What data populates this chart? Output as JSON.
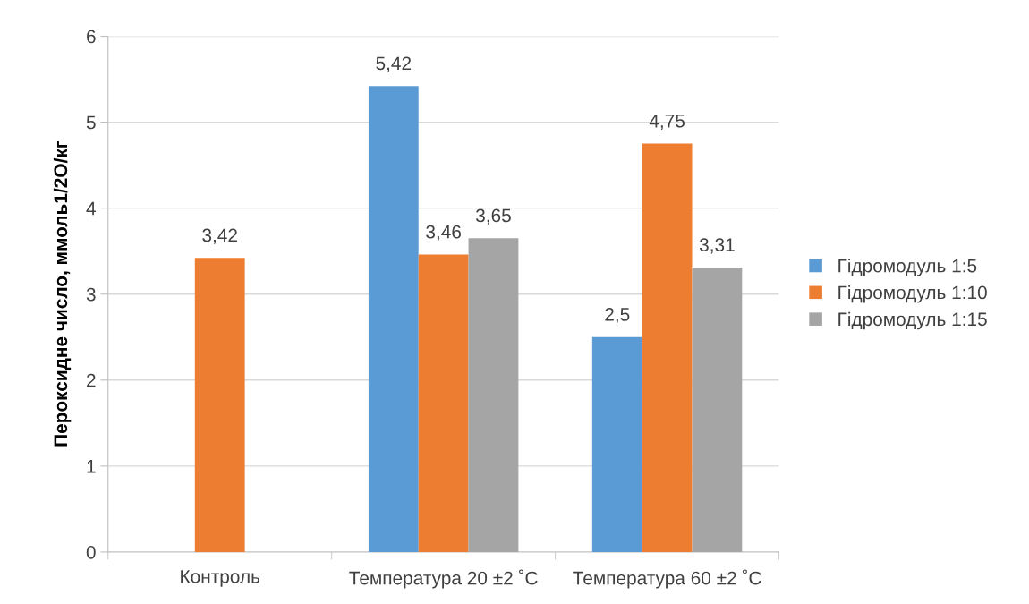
{
  "chart_data": {
    "type": "bar",
    "categories": [
      "Контроль",
      "Температура 20 ±2 ˚C",
      "Температура 60 ±2 ˚C"
    ],
    "ylabel": "Пероксидне число, ммоль1/2О/кг",
    "series": [
      {
        "name": "Гідромодуль 1:5",
        "color": "#5b9bd5",
        "values": [
          null,
          5.42,
          2.5
        ],
        "value_labels": [
          null,
          "5,42",
          "2,5"
        ]
      },
      {
        "name": "Гідромодуль 1:10",
        "color": "#ed7d31",
        "values": [
          3.42,
          3.46,
          4.75
        ],
        "value_labels": [
          "3,42",
          "3,46",
          "4,75"
        ]
      },
      {
        "name": "Гідромодуль 1:15",
        "color": "#a5a5a5",
        "values": [
          null,
          3.65,
          3.31
        ],
        "value_labels": [
          null,
          "3,65",
          "3,31"
        ]
      }
    ],
    "ylim": [
      0,
      6
    ],
    "yticks": [
      0,
      1,
      2,
      3,
      4,
      5,
      6
    ],
    "grid": "y",
    "legend": "right"
  }
}
